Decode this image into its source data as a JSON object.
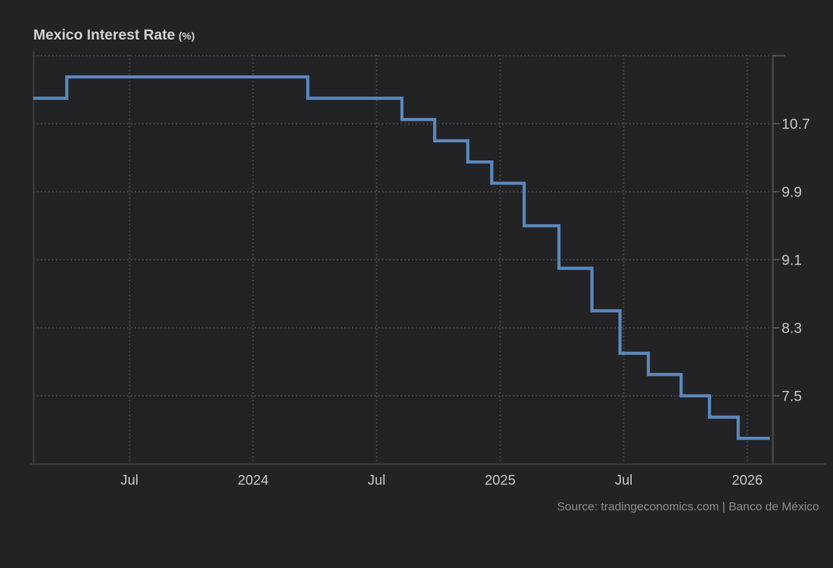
{
  "page": {
    "background_color": "#232325"
  },
  "header": {
    "title": "Mexico Interest Rate",
    "unit": "(%)"
  },
  "source": {
    "text": "Source: tradingeconomics.com | Banco de México"
  },
  "chart_data": {
    "type": "line",
    "step": "after",
    "title": "Mexico Interest Rate (%)",
    "ylabel": "Interest Rate (%)",
    "xlabel": "",
    "legend": "none",
    "grid": "dotted",
    "x_domain": [
      "2023-02-11",
      "2026-02-08"
    ],
    "ylim": [
      6.7,
      11.51
    ],
    "y_ticks": [
      {
        "value": 11.5,
        "label": ""
      },
      {
        "value": 10.7,
        "label": "10.7"
      },
      {
        "value": 9.9,
        "label": "9.9"
      },
      {
        "value": 9.1,
        "label": "9.1"
      },
      {
        "value": 8.3,
        "label": "8.3"
      },
      {
        "value": 7.5,
        "label": "7.5"
      }
    ],
    "x_ticks": [
      {
        "date": "2023-07-01",
        "label": "Jul"
      },
      {
        "date": "2024-01-01",
        "label": "2024"
      },
      {
        "date": "2024-07-01",
        "label": "Jul"
      },
      {
        "date": "2025-01-01",
        "label": "2025"
      },
      {
        "date": "2025-07-01",
        "label": "Jul"
      },
      {
        "date": "2026-01-01",
        "label": "2026"
      }
    ],
    "series": [
      {
        "name": "Mexico Interest Rate",
        "points": [
          {
            "date": "2023-02-11",
            "value": 11.0
          },
          {
            "date": "2023-03-30",
            "value": 11.25
          },
          {
            "date": "2024-03-21",
            "value": 11.0
          },
          {
            "date": "2024-08-08",
            "value": 10.75
          },
          {
            "date": "2024-09-26",
            "value": 10.5
          },
          {
            "date": "2024-11-14",
            "value": 10.25
          },
          {
            "date": "2024-12-19",
            "value": 10.0
          },
          {
            "date": "2025-02-06",
            "value": 9.5
          },
          {
            "date": "2025-03-27",
            "value": 9.0
          },
          {
            "date": "2025-05-15",
            "value": 8.5
          },
          {
            "date": "2025-06-26",
            "value": 8.0
          },
          {
            "date": "2025-08-07",
            "value": 7.75
          },
          {
            "date": "2025-09-25",
            "value": 7.5
          },
          {
            "date": "2025-11-06",
            "value": 7.25
          },
          {
            "date": "2025-12-18",
            "value": 7.0
          },
          {
            "date": "2026-02-04",
            "value": 7.0
          }
        ]
      }
    ],
    "style": {
      "line_color": "#5b89bd",
      "grid_color": "#474747",
      "axis_color": "#3f3f3f",
      "right_axis_color": "#525252",
      "tick_label_color": "#c9c9c9",
      "title_color": "#d3d3d3",
      "source_color": "#8d8d8d"
    }
  }
}
